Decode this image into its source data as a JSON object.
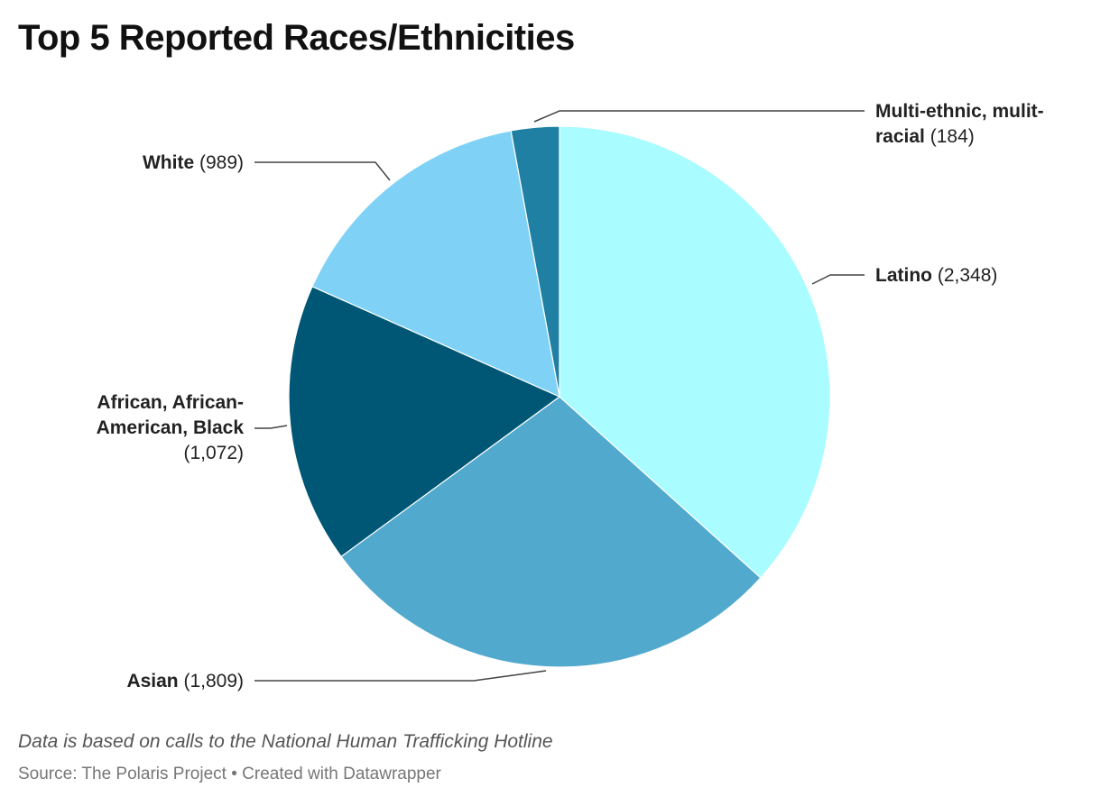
{
  "title": "Top 5 Reported Races/Ethnicities",
  "notes": "Data is based on calls to the National Human Trafficking Hotline",
  "source": "Source: The Polaris Project",
  "created_with": "Created with Datawrapper",
  "footer_separator": "•",
  "chart_data": {
    "type": "pie",
    "title": "Top 5 Reported Races/Ethnicities",
    "slices": [
      {
        "name": "Latino",
        "value": 2348,
        "display": "(2,348)",
        "color": "#a9fcff"
      },
      {
        "name": "Asian",
        "value": 1809,
        "display": "(1,809)",
        "color": "#52a9ce"
      },
      {
        "name": "African, African-American, Black",
        "display_lines": [
          "African, African-",
          "American, Black"
        ],
        "value": 1072,
        "display": "(1,072)",
        "color": "#005775"
      },
      {
        "name": "White",
        "value": 989,
        "display": "(989)",
        "color": "#7fd2f5"
      },
      {
        "name": "Multi-ethnic, mulit-racial",
        "display_lines": [
          "Multi-ethnic, mulit-",
          "racial"
        ],
        "value": 184,
        "display": "(184)",
        "color": "#1f80a3"
      }
    ]
  }
}
